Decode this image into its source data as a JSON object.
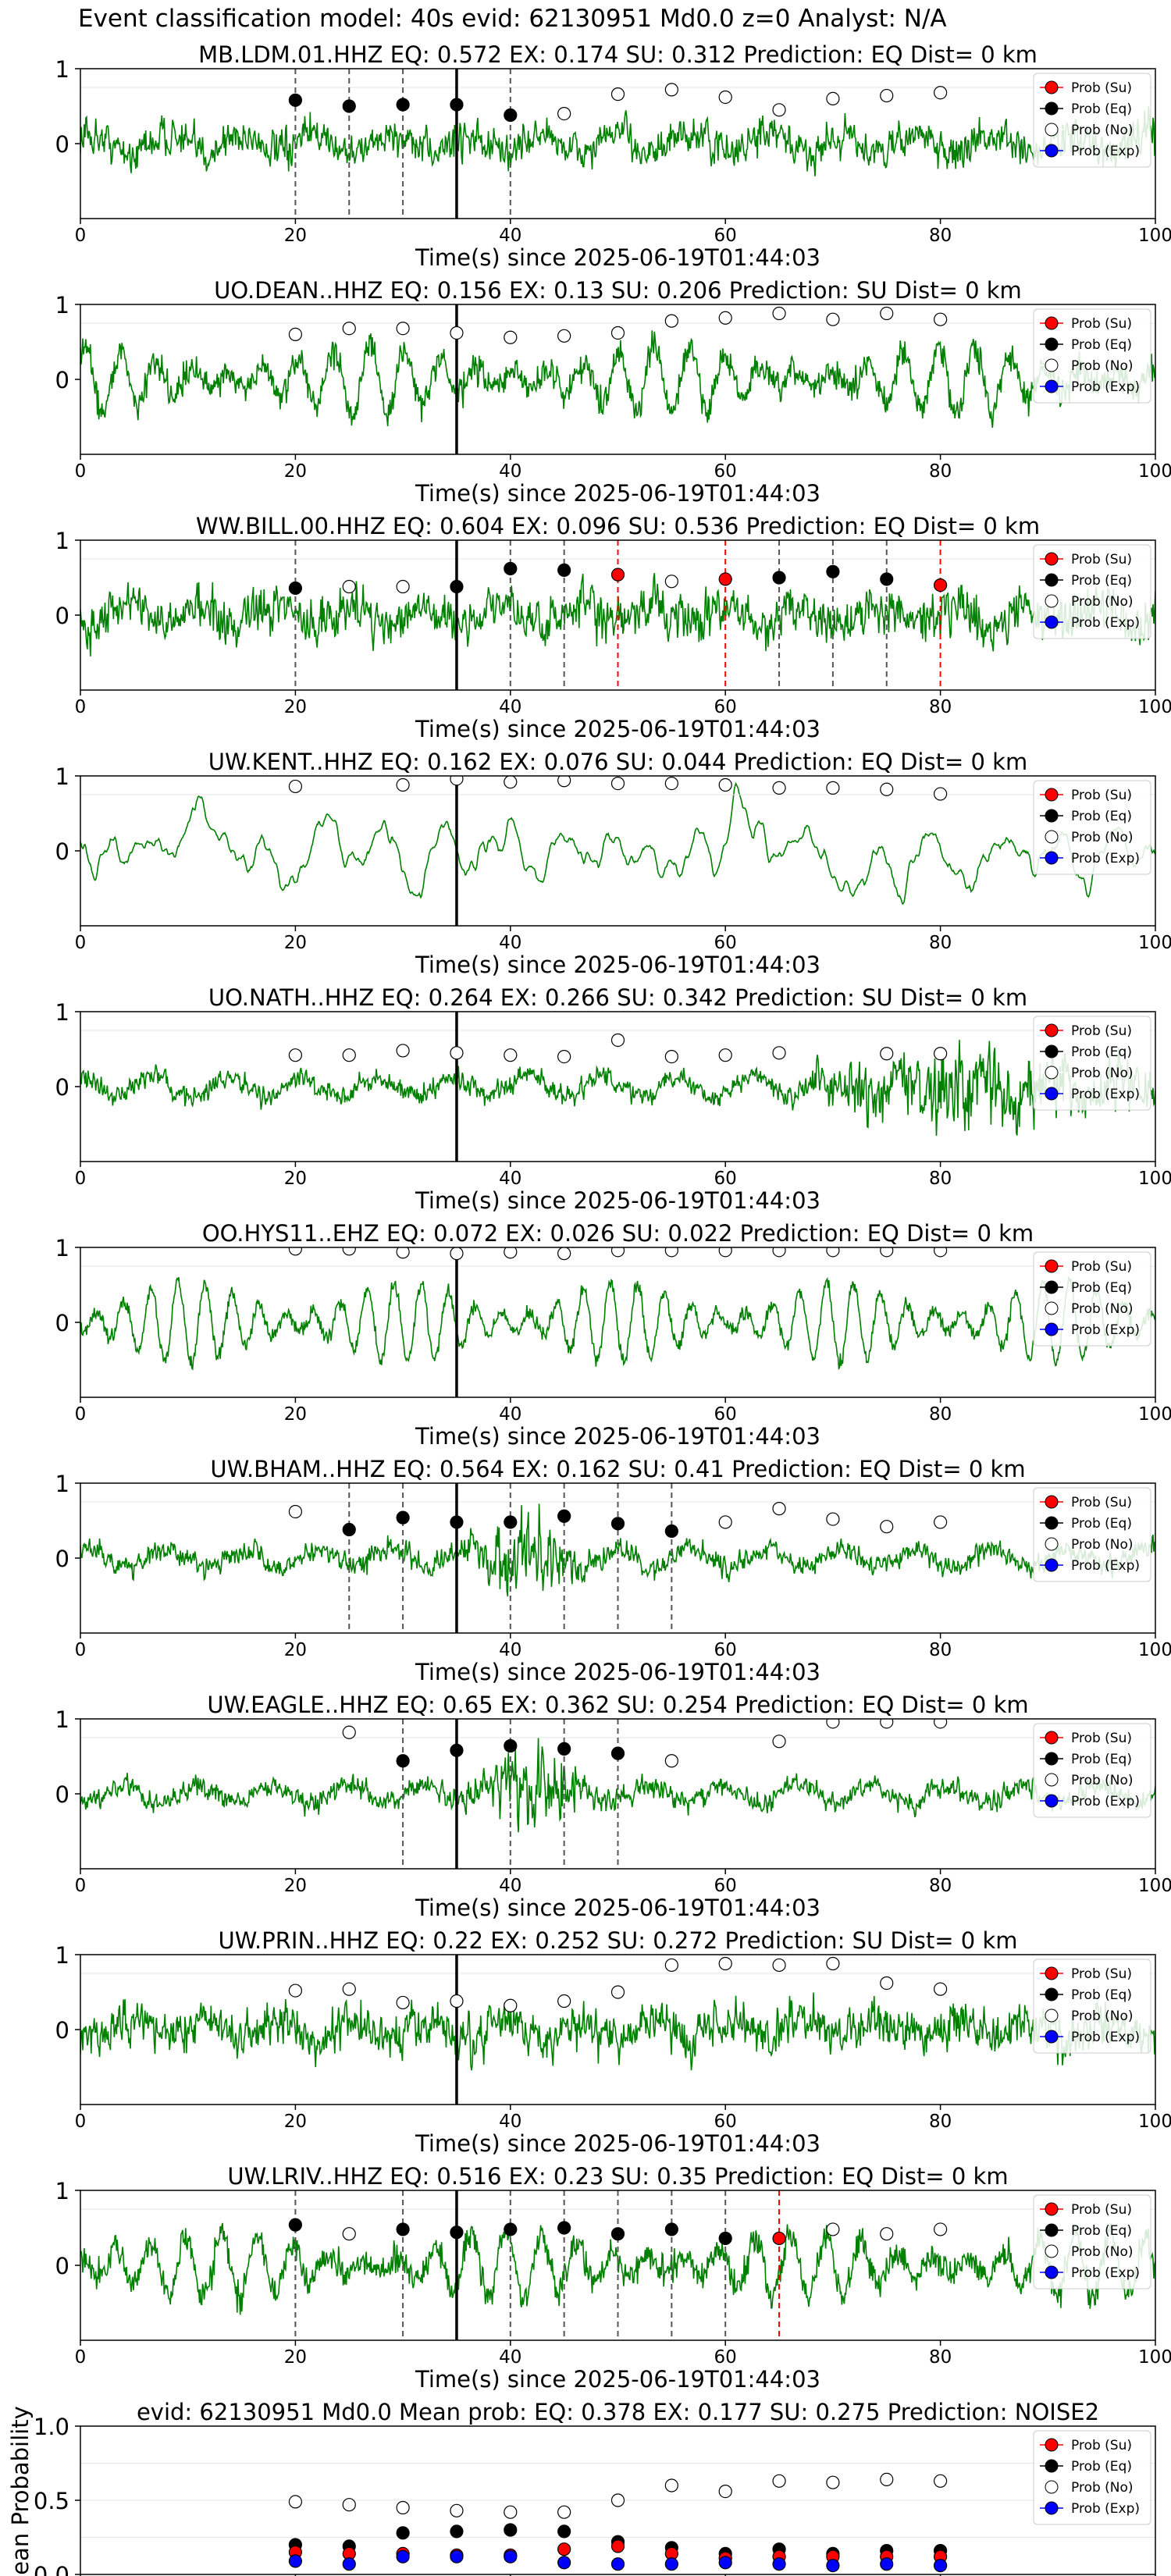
{
  "suptitle": "Event classification model: 40s evid: 62130951 Md0.0 z=0 Analyst: N/A",
  "colors": {
    "waveform": "#008000",
    "prob_su": "#ff0000",
    "prob_eq": "#000000",
    "prob_no": "#ffffff",
    "prob_exp": "#0000ff",
    "onset_line": "#000000"
  },
  "legend_labels": [
    "Prob (Su)",
    "Prob (Eq)",
    "Prob (No)",
    "Prob (Exp)"
  ],
  "chart_data": [
    {
      "type": "line",
      "title": "MB.LDM.01.HHZ   EQ: 0.572  EX: 0.174  SU: 0.312   Prediction: EQ    Dist= 0 km",
      "xlabel": "Time(s) since 2025-06-19T01:44:03",
      "xlim": [
        0,
        100
      ],
      "ylim": [
        -1,
        1
      ],
      "xticks": [
        0,
        20,
        40,
        60,
        80,
        100
      ],
      "yticks": [
        0,
        1
      ],
      "legend": "top-right",
      "waveform_style": "high-frequency",
      "onset": 35,
      "eq_points": [
        [
          20,
          0.58
        ],
        [
          25,
          0.5
        ],
        [
          30,
          0.52
        ],
        [
          35,
          0.52
        ],
        [
          40,
          0.38
        ]
      ],
      "su_points": [],
      "no_points": [
        [
          45,
          0.4
        ],
        [
          50,
          0.66
        ],
        [
          55,
          0.72
        ],
        [
          60,
          0.62
        ],
        [
          65,
          0.45
        ],
        [
          70,
          0.6
        ],
        [
          75,
          0.64
        ],
        [
          80,
          0.68
        ]
      ],
      "eq_lines": [
        20,
        25,
        30,
        40
      ],
      "su_lines": []
    },
    {
      "type": "line",
      "title": "UO.DEAN..HHZ   EQ: 0.156  EX: 0.13  SU: 0.206   Prediction: SU    Dist= 0 km",
      "xlabel": "Time(s) since 2025-06-19T01:44:03",
      "xlim": [
        0,
        100
      ],
      "ylim": [
        -1,
        1
      ],
      "xticks": [
        0,
        20,
        40,
        60,
        80,
        100
      ],
      "yticks": [
        0,
        1
      ],
      "legend": "top-right",
      "waveform_style": "oscillatory",
      "onset": 35,
      "eq_points": [],
      "su_points": [],
      "no_points": [
        [
          20,
          0.6
        ],
        [
          25,
          0.68
        ],
        [
          30,
          0.68
        ],
        [
          35,
          0.62
        ],
        [
          40,
          0.56
        ],
        [
          45,
          0.58
        ],
        [
          50,
          0.62
        ],
        [
          55,
          0.78
        ],
        [
          60,
          0.82
        ],
        [
          65,
          0.88
        ],
        [
          70,
          0.8
        ],
        [
          75,
          0.88
        ],
        [
          80,
          0.8
        ]
      ],
      "eq_lines": [],
      "su_lines": []
    },
    {
      "type": "line",
      "title": "WW.BILL.00.HHZ   EQ: 0.604  EX: 0.096  SU: 0.536   Prediction: EQ    Dist= 0 km",
      "xlabel": "Time(s) since 2025-06-19T01:44:03",
      "xlim": [
        0,
        100
      ],
      "ylim": [
        -1,
        1
      ],
      "xticks": [
        0,
        20,
        40,
        60,
        80,
        100
      ],
      "yticks": [
        0,
        1
      ],
      "legend": "top-right",
      "waveform_style": "noisy",
      "onset": 35,
      "eq_points": [
        [
          20,
          0.36
        ],
        [
          35,
          0.38
        ],
        [
          40,
          0.62
        ],
        [
          45,
          0.6
        ],
        [
          65,
          0.5
        ],
        [
          70,
          0.58
        ],
        [
          75,
          0.48
        ]
      ],
      "su_points": [
        [
          50,
          0.54
        ],
        [
          60,
          0.48
        ],
        [
          80,
          0.4
        ]
      ],
      "no_points": [
        [
          25,
          0.38
        ],
        [
          30,
          0.38
        ],
        [
          55,
          0.45
        ]
      ],
      "eq_lines": [
        20,
        40,
        45,
        65,
        70,
        75
      ],
      "su_lines": [
        50,
        60,
        80
      ]
    },
    {
      "type": "line",
      "title": "UW.KENT..HHZ   EQ: 0.162  EX: 0.076  SU: 0.044   Prediction: EQ    Dist= 0 km",
      "xlabel": "Time(s) since 2025-06-19T01:44:03",
      "xlim": [
        0,
        100
      ],
      "ylim": [
        -1,
        1
      ],
      "xticks": [
        0,
        20,
        40,
        60,
        80,
        100
      ],
      "yticks": [
        0,
        1
      ],
      "legend": "top-right",
      "waveform_style": "smooth",
      "onset": 35,
      "eq_points": [],
      "su_points": [],
      "no_points": [
        [
          20,
          0.86
        ],
        [
          30,
          0.88
        ],
        [
          35,
          0.96
        ],
        [
          40,
          0.92
        ],
        [
          45,
          0.94
        ],
        [
          50,
          0.9
        ],
        [
          55,
          0.9
        ],
        [
          60,
          0.88
        ],
        [
          65,
          0.84
        ],
        [
          70,
          0.84
        ],
        [
          75,
          0.82
        ],
        [
          80,
          0.76
        ]
      ],
      "eq_lines": [],
      "su_lines": []
    },
    {
      "type": "line",
      "title": "UO.NATH..HHZ   EQ: 0.264  EX: 0.266  SU: 0.342   Prediction: SU    Dist= 0 km",
      "xlabel": "Time(s) since 2025-06-19T01:44:03",
      "xlim": [
        0,
        100
      ],
      "ylim": [
        -1,
        1
      ],
      "xticks": [
        0,
        20,
        40,
        60,
        80,
        100
      ],
      "yticks": [
        0,
        1
      ],
      "legend": "top-right",
      "waveform_style": "late-burst",
      "onset": 35,
      "eq_points": [],
      "su_points": [],
      "no_points": [
        [
          20,
          0.42
        ],
        [
          25,
          0.42
        ],
        [
          30,
          0.48
        ],
        [
          35,
          0.45
        ],
        [
          40,
          0.42
        ],
        [
          45,
          0.4
        ],
        [
          50,
          0.62
        ],
        [
          55,
          0.4
        ],
        [
          60,
          0.42
        ],
        [
          65,
          0.45
        ],
        [
          75,
          0.44
        ],
        [
          80,
          0.44
        ]
      ],
      "eq_lines": [],
      "su_lines": []
    },
    {
      "type": "line",
      "title": "OO.HYS11..EHZ   EQ: 0.072  EX: 0.026  SU: 0.022   Prediction: EQ    Dist= 0 km",
      "xlabel": "Time(s) since 2025-06-19T01:44:03",
      "xlim": [
        0,
        100
      ],
      "ylim": [
        -1,
        1
      ],
      "xticks": [
        0,
        20,
        40,
        60,
        80,
        100
      ],
      "yticks": [
        0,
        1
      ],
      "legend": "top-right",
      "waveform_style": "sine",
      "onset": 35,
      "eq_points": [],
      "su_points": [],
      "no_points": [
        [
          20,
          0.98
        ],
        [
          25,
          0.98
        ],
        [
          30,
          0.94
        ],
        [
          35,
          0.92
        ],
        [
          40,
          0.94
        ],
        [
          45,
          0.92
        ],
        [
          50,
          0.96
        ],
        [
          55,
          0.96
        ],
        [
          60,
          0.96
        ],
        [
          65,
          0.96
        ],
        [
          70,
          0.96
        ],
        [
          75,
          0.96
        ],
        [
          80,
          0.96
        ]
      ],
      "eq_lines": [],
      "su_lines": []
    },
    {
      "type": "line",
      "title": "UW.BHAM..HHZ   EQ: 0.564  EX: 0.162  SU: 0.41   Prediction: EQ    Dist= 0 km",
      "xlabel": "Time(s) since 2025-06-19T01:44:03",
      "xlim": [
        0,
        100
      ],
      "ylim": [
        -1,
        1
      ],
      "xticks": [
        0,
        20,
        40,
        60,
        80,
        100
      ],
      "yticks": [
        0,
        1
      ],
      "legend": "top-right",
      "waveform_style": "burst-mid",
      "onset": 35,
      "eq_points": [
        [
          25,
          0.38
        ],
        [
          30,
          0.54
        ],
        [
          35,
          0.48
        ],
        [
          40,
          0.48
        ],
        [
          45,
          0.56
        ],
        [
          50,
          0.46
        ],
        [
          55,
          0.36
        ]
      ],
      "su_points": [],
      "no_points": [
        [
          20,
          0.62
        ],
        [
          60,
          0.48
        ],
        [
          65,
          0.66
        ],
        [
          70,
          0.52
        ],
        [
          75,
          0.42
        ],
        [
          80,
          0.48
        ]
      ],
      "eq_lines": [
        25,
        30,
        40,
        45,
        50,
        55
      ],
      "su_lines": []
    },
    {
      "type": "line",
      "title": "UW.EAGLE..HHZ   EQ: 0.65  EX: 0.362  SU: 0.254   Prediction: EQ    Dist= 0 km",
      "xlabel": "Time(s) since 2025-06-19T01:44:03",
      "xlim": [
        0,
        100
      ],
      "ylim": [
        -1,
        1
      ],
      "xticks": [
        0,
        20,
        40,
        60,
        80,
        100
      ],
      "yticks": [
        0,
        1
      ],
      "legend": "top-right",
      "waveform_style": "burst-mid",
      "onset": 35,
      "eq_points": [
        [
          30,
          0.44
        ],
        [
          35,
          0.58
        ],
        [
          40,
          0.64
        ],
        [
          45,
          0.6
        ],
        [
          50,
          0.54
        ]
      ],
      "su_points": [],
      "no_points": [
        [
          25,
          0.82
        ],
        [
          55,
          0.44
        ],
        [
          65,
          0.7
        ],
        [
          70,
          0.96
        ],
        [
          75,
          0.96
        ],
        [
          80,
          0.96
        ]
      ],
      "eq_lines": [
        30,
        40,
        45,
        50
      ],
      "su_lines": []
    },
    {
      "type": "line",
      "title": "UW.PRIN..HHZ   EQ: 0.22  EX: 0.252  SU: 0.272   Prediction: SU    Dist= 0 km",
      "xlabel": "Time(s) since 2025-06-19T01:44:03",
      "xlim": [
        0,
        100
      ],
      "ylim": [
        -1,
        1
      ],
      "xticks": [
        0,
        20,
        40,
        60,
        80,
        100
      ],
      "yticks": [
        0,
        1
      ],
      "legend": "top-right",
      "waveform_style": "noisy",
      "onset": 35,
      "eq_points": [],
      "su_points": [],
      "no_points": [
        [
          20,
          0.52
        ],
        [
          25,
          0.54
        ],
        [
          30,
          0.36
        ],
        [
          35,
          0.38
        ],
        [
          40,
          0.32
        ],
        [
          45,
          0.38
        ],
        [
          50,
          0.5
        ],
        [
          55,
          0.86
        ],
        [
          60,
          0.88
        ],
        [
          65,
          0.86
        ],
        [
          70,
          0.88
        ],
        [
          75,
          0.62
        ],
        [
          80,
          0.54
        ]
      ],
      "eq_lines": [],
      "su_lines": []
    },
    {
      "type": "line",
      "title": "UW.LRIV..HHZ   EQ: 0.516  EX: 0.23  SU: 0.35   Prediction: EQ    Dist= 0 km",
      "xlabel": "Time(s) since 2025-06-19T01:44:03",
      "xlim": [
        0,
        100
      ],
      "ylim": [
        -1,
        1
      ],
      "xticks": [
        0,
        20,
        40,
        60,
        80,
        100
      ],
      "yticks": [
        0,
        1
      ],
      "legend": "top-right",
      "waveform_style": "oscillatory",
      "onset": 35,
      "eq_points": [
        [
          20,
          0.54
        ],
        [
          30,
          0.48
        ],
        [
          35,
          0.44
        ],
        [
          40,
          0.48
        ],
        [
          45,
          0.5
        ],
        [
          50,
          0.42
        ],
        [
          55,
          0.48
        ],
        [
          60,
          0.36
        ]
      ],
      "su_points": [
        [
          65,
          0.36
        ]
      ],
      "no_points": [
        [
          25,
          0.42
        ],
        [
          70,
          0.48
        ],
        [
          75,
          0.42
        ],
        [
          80,
          0.48
        ]
      ],
      "eq_lines": [
        20,
        30,
        40,
        45,
        50,
        55,
        60
      ],
      "su_lines": [
        65
      ]
    },
    {
      "type": "scatter",
      "title": "evid: 62130951  Md0.0   Mean prob:   EQ: 0.378  EX: 0.177  SU: 0.275   Prediction: NOISE2",
      "xlabel": "",
      "ylabel": "Mean Probability",
      "xlim": [
        0,
        100
      ],
      "ylim": [
        0,
        1
      ],
      "xticks": [
        0,
        20,
        40,
        60,
        80,
        100
      ],
      "yticks": [
        0.0,
        0.5,
        1.0
      ],
      "ytick_labels": [
        "0.0",
        "0.5",
        "1.0"
      ],
      "legend": "top-right",
      "x": [
        20,
        25,
        30,
        35,
        40,
        45,
        50,
        55,
        60,
        65,
        70,
        75,
        80
      ],
      "series": [
        {
          "name": "Prob (Su)",
          "values": [
            0.15,
            0.14,
            0.14,
            0.13,
            0.13,
            0.17,
            0.19,
            0.14,
            0.11,
            0.12,
            0.12,
            0.12,
            0.12
          ]
        },
        {
          "name": "Prob (Eq)",
          "values": [
            0.2,
            0.19,
            0.28,
            0.29,
            0.3,
            0.29,
            0.22,
            0.18,
            0.14,
            0.17,
            0.14,
            0.16,
            0.16
          ]
        },
        {
          "name": "Prob (No)",
          "values": [
            0.49,
            0.47,
            0.45,
            0.43,
            0.42,
            0.42,
            0.5,
            0.6,
            0.56,
            0.63,
            0.62,
            0.64,
            0.63
          ]
        },
        {
          "name": "Prob (Exp)",
          "values": [
            0.09,
            0.07,
            0.12,
            0.12,
            0.12,
            0.08,
            0.07,
            0.07,
            0.08,
            0.07,
            0.06,
            0.07,
            0.06
          ]
        }
      ]
    }
  ]
}
